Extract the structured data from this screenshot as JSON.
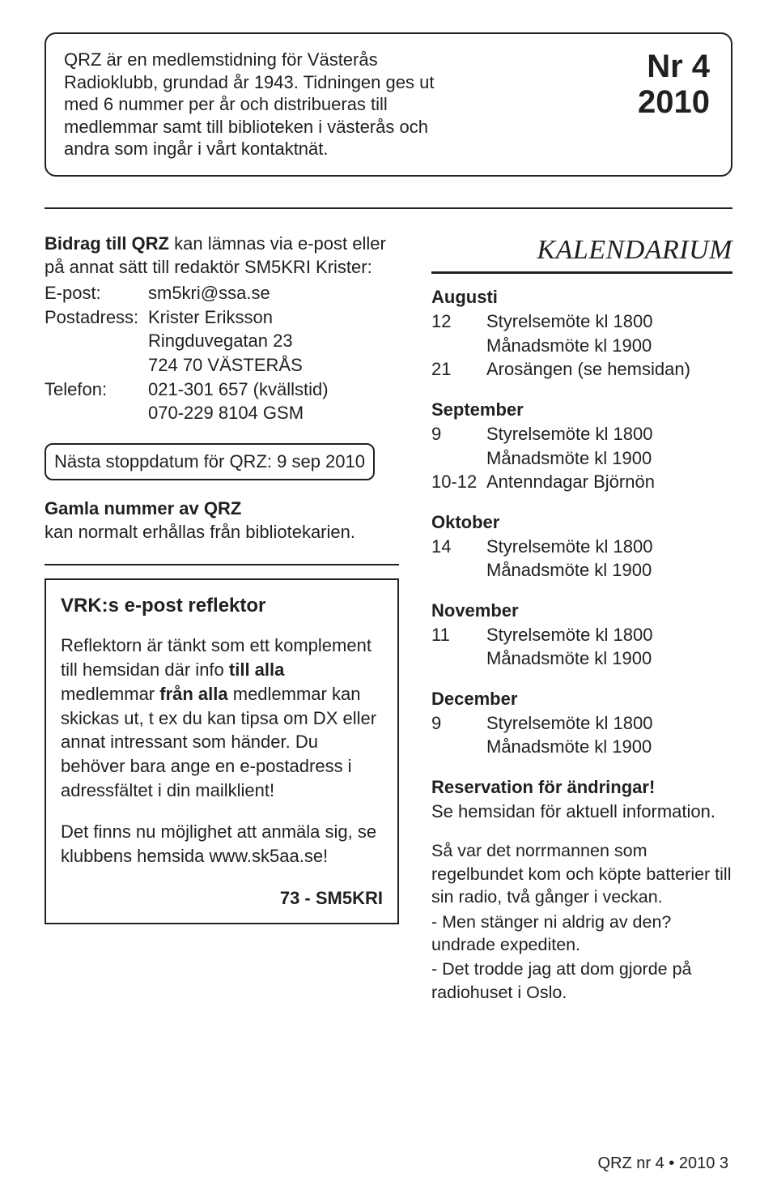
{
  "header": {
    "intro": "QRZ är en medlemstidning för Västerås Radioklubb, grundad år 1943. Tidningen ges ut med 6 nummer per år och distribueras till medlemmar samt till biblioteken i västerås och andra som ingår i vårt kontaktnät.",
    "issue_line1": "Nr 4",
    "issue_line2": "2010"
  },
  "contrib": {
    "lead_html_pre": "Bidrag till QRZ",
    "lead_html_post": " kan lämnas via e-post eller på annat sätt till redaktör SM5KRI Krister:",
    "rows": [
      {
        "k": "E-post:",
        "v": "sm5kri@ssa.se"
      },
      {
        "k": "Postadress:",
        "v": "Krister Eriksson"
      },
      {
        "k": "",
        "v": "Ringduvegatan 23"
      },
      {
        "k": "",
        "v": "724 70 VÄSTERÅS"
      },
      {
        "k": "Telefon:",
        "v": "021-301 657 (kvällstid)"
      },
      {
        "k": "",
        "v": "070-229 8104 GSM"
      }
    ]
  },
  "nextstop": "Nästa stoppdatum för QRZ: 9 sep 2010",
  "gamla": {
    "l1": "Gamla nummer av QRZ",
    "l2": "kan normalt erhållas från bibliotekarien."
  },
  "reflektor": {
    "title": "VRK:s e-post reflektor",
    "p1_pre": "Reflektorn är tänkt som ett komplement till hemsidan där info ",
    "p1_b1": "till alla",
    "p1_mid": " medlemmar ",
    "p1_b2": "från alla",
    "p1_post": " medlemmar kan skickas ut, t ex du kan tipsa om DX eller annat intressant som händer. Du behöver bara ange en e-postadress i adressfältet i din mailklient!",
    "p2": "Det finns nu möjlighet att anmäla sig, se klubbens hemsida www.sk5aa.se!",
    "sig": "73 - SM5KRI"
  },
  "kalendarium": {
    "title": "KALENDARIUM",
    "months": [
      {
        "name": "Augusti",
        "events": [
          {
            "d": "12",
            "t": "Styrelsemöte kl 1800"
          },
          {
            "d": "",
            "t": "Månadsmöte kl 1900"
          },
          {
            "d": "21",
            "t": "Arosängen (se hemsidan)"
          }
        ]
      },
      {
        "name": "September",
        "events": [
          {
            "d": "9",
            "t": "Styrelsemöte kl 1800"
          },
          {
            "d": "",
            "t": "Månadsmöte kl 1900"
          },
          {
            "d": "10-12",
            "t": "Antenndagar Björnön"
          }
        ]
      },
      {
        "name": "Oktober",
        "events": [
          {
            "d": "14",
            "t": "Styrelsemöte kl 1800"
          },
          {
            "d": "",
            "t": "Månadsmöte kl 1900"
          }
        ]
      },
      {
        "name": "November",
        "events": [
          {
            "d": "11",
            "t": "Styrelsemöte kl 1800"
          },
          {
            "d": "",
            "t": "Månadsmöte kl 1900"
          }
        ]
      },
      {
        "name": "December",
        "events": [
          {
            "d": "9",
            "t": "Styrelsemöte kl 1800"
          },
          {
            "d": "",
            "t": "Månadsmöte kl 1900"
          }
        ]
      }
    ],
    "reserv_b": "Reservation för ändringar!",
    "reserv_t": "Se hemsidan för aktuell information.",
    "joke": [
      "Så var det norrmannen som regelbundet kom och köpte batterier till sin radio, två gånger i veckan.",
      "- Men stänger ni aldrig av den? undrade expediten.",
      "- Det trodde jag att dom gjorde på radiohuset i Oslo."
    ]
  },
  "footer": "QRZ nr 4 • 2010   3"
}
